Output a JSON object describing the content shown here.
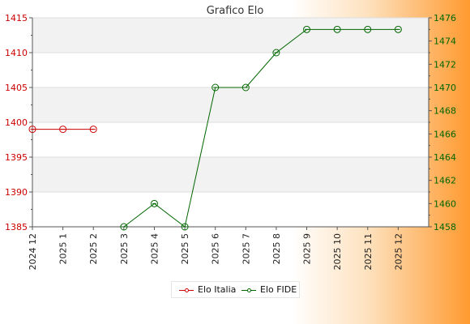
{
  "chart_data": {
    "type": "line",
    "title": "Grafico Elo",
    "categories": [
      "2024 12",
      "2025 1",
      "2025 2",
      "2025 3",
      "2025 4",
      "2025 5",
      "2025 6",
      "2025 7",
      "2025 8",
      "2025 9",
      "2025 10",
      "2025 11",
      "2025 12"
    ],
    "series": [
      {
        "name": "Elo Italia",
        "axis": "left",
        "color": "#cc0000",
        "values": [
          1399,
          1399,
          1399,
          null,
          null,
          null,
          null,
          null,
          null,
          null,
          null,
          null,
          null
        ]
      },
      {
        "name": "Elo FIDE",
        "axis": "right",
        "color": "#006600",
        "values": [
          null,
          null,
          null,
          1458,
          1460,
          1458,
          1470,
          1470,
          1473,
          1475,
          1475,
          1475,
          1475
        ]
      }
    ],
    "left_axis": {
      "min": 1385,
      "max": 1415,
      "ticks": [
        1385,
        1390,
        1395,
        1400,
        1405,
        1410,
        1415
      ],
      "color": "#cc0000"
    },
    "right_axis": {
      "min": 1458,
      "max": 1476,
      "ticks": [
        1458,
        1460,
        1462,
        1464,
        1466,
        1468,
        1470,
        1472,
        1474,
        1476
      ],
      "color": "#006600"
    },
    "legend_position": "bottom-center",
    "grid": true
  },
  "legend": {
    "italia": "Elo Italia",
    "fide": "Elo FIDE"
  }
}
